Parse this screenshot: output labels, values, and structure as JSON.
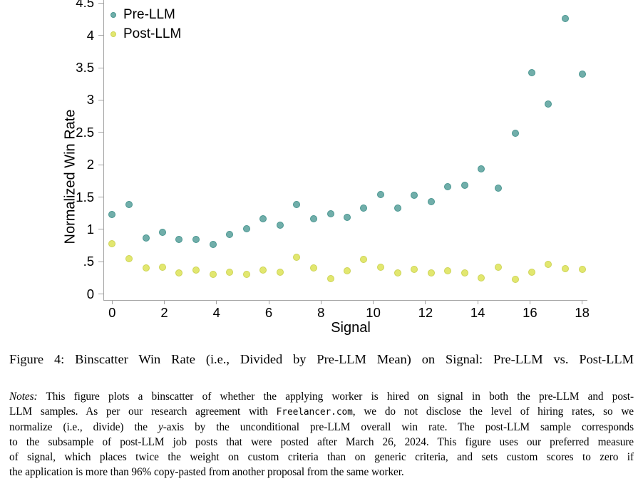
{
  "figure": {
    "caption": "Figure 4: Binscatter Win Rate (i.e., Divided by Pre-LLM Mean) on Signal: Pre-LLM vs. Post-LLM",
    "notes_lines": [
      {
        "segments": [
          {
            "style": "italic",
            "text": "Notes:"
          },
          {
            "style": "normal",
            "text": " This figure plots a binscatter of whether the applying worker is hired on signal in both the pre-LLM and post-"
          }
        ]
      },
      {
        "segments": [
          {
            "style": "normal",
            "text": "LLM samples. As per our research agreement with "
          },
          {
            "style": "mono",
            "text": "Freelancer.com"
          },
          {
            "style": "normal",
            "text": ", we do not disclose the level of hiring rates, so we"
          }
        ]
      },
      {
        "segments": [
          {
            "style": "normal",
            "text": "normalize (i.e., divide) the "
          },
          {
            "style": "italic",
            "text": "y"
          },
          {
            "style": "normal",
            "text": "-axis by the unconditional pre-LLM overall win rate. The post-LLM sample corresponds"
          }
        ]
      },
      {
        "segments": [
          {
            "style": "normal",
            "text": "to the subsample of post-LLM job posts that were posted after March 26, 2024. This figure uses our preferred measure"
          }
        ]
      },
      {
        "segments": [
          {
            "style": "normal",
            "text": "of signal, which places twice the weight on custom criteria than on generic criteria, and sets custom scores to zero if"
          }
        ]
      },
      {
        "segments": [
          {
            "style": "normal",
            "text": "the application is more than 96% copy-pasted from another proposal from the same worker."
          }
        ]
      }
    ]
  },
  "chart_data": {
    "type": "scatter",
    "title": "",
    "xlabel": "Signal",
    "ylabel": "Normalized Win Rate",
    "xlim": [
      0,
      18
    ],
    "ylim": [
      0,
      4.5
    ],
    "grid": false,
    "legend_position": "top-left",
    "x_ticks": {
      "values": [
        0,
        2,
        4,
        6,
        8,
        10,
        12,
        14,
        16,
        18
      ],
      "labels": [
        "0",
        "2",
        "4",
        "6",
        "8",
        "10",
        "12",
        "14",
        "16",
        "18"
      ]
    },
    "y_ticks": {
      "values": [
        0,
        0.5,
        1,
        1.5,
        2,
        2.5,
        3,
        3.5,
        4,
        4.5
      ],
      "labels": [
        "0",
        ".5",
        "1",
        "1.5",
        "2",
        "2.5",
        "3",
        "3.5",
        "4",
        "4.5"
      ]
    },
    "x": [
      0,
      0.64,
      1.29,
      1.93,
      2.57,
      3.21,
      3.86,
      4.5,
      5.14,
      5.79,
      6.43,
      7.07,
      7.71,
      8.36,
      9.0,
      9.64,
      10.29,
      10.93,
      11.57,
      12.21,
      12.86,
      13.5,
      14.14,
      14.79,
      15.43,
      16.07,
      16.71,
      17.36,
      18.0
    ],
    "series": [
      {
        "name": "Pre-LLM",
        "fill": "#71AEAA",
        "stroke": "#489690",
        "values": [
          1.23,
          1.38,
          0.87,
          0.96,
          0.85,
          0.85,
          0.77,
          0.92,
          1.01,
          1.17,
          1.06,
          1.38,
          1.17,
          1.24,
          1.19,
          1.33,
          1.54,
          1.33,
          1.53,
          1.43,
          1.66,
          1.68,
          1.94,
          1.64,
          2.49,
          3.42,
          2.94,
          4.26,
          3.4
        ]
      },
      {
        "name": "Post-LLM",
        "fill": "#E2E76F",
        "stroke": "#CDD457",
        "values": [
          0.78,
          0.55,
          0.4,
          0.41,
          0.33,
          0.37,
          0.3,
          0.34,
          0.3,
          0.37,
          0.34,
          0.57,
          0.4,
          0.24,
          0.36,
          0.54,
          0.41,
          0.33,
          0.38,
          0.33,
          0.36,
          0.33,
          0.25,
          0.41,
          0.23,
          0.34,
          0.46,
          0.39,
          0.38
        ]
      }
    ]
  },
  "colors": {
    "axis": "#a3a3a3",
    "text": "#000000",
    "pre_llm": "#71AEAA",
    "post_llm": "#E2E76F"
  }
}
